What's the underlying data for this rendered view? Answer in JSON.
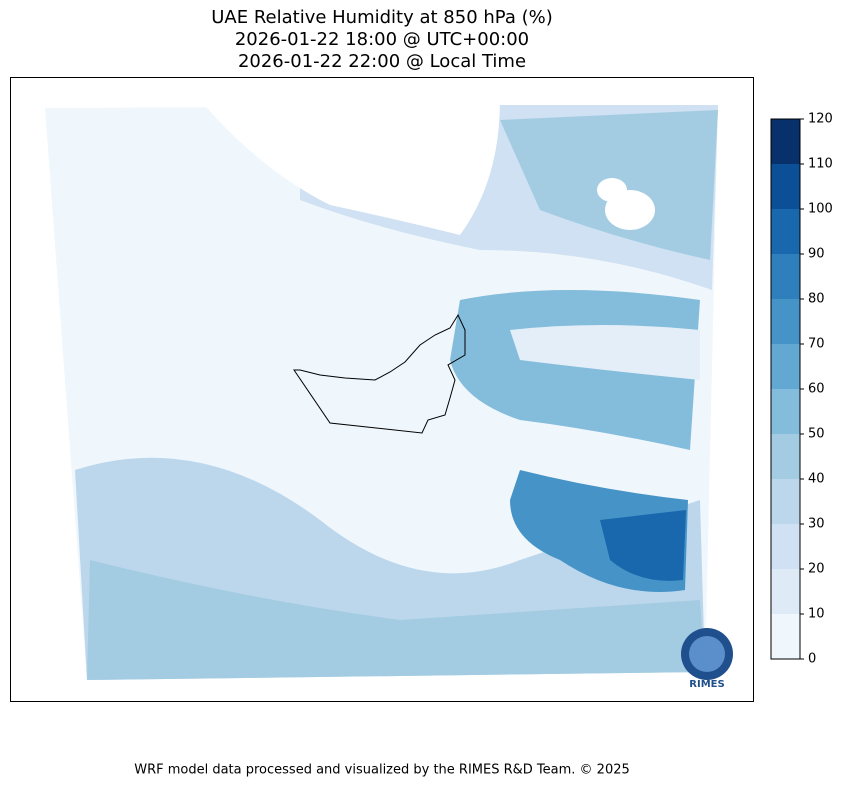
{
  "map": {
    "title": [
      "UAE Relative Humidity at 850 hPa (%)",
      "2026-01-22 18:00 @ UTC+00:00",
      "2026-01-22 22:00 @ Local Time"
    ],
    "colorbar": {
      "levels": [
        0,
        10,
        20,
        30,
        40,
        50,
        60,
        70,
        80,
        90,
        100,
        110,
        120
      ],
      "colors": [
        "#eff6fc",
        "#deebf7",
        "#cfe1f2",
        "#bcd7eb",
        "#a3cce3",
        "#84bcdb",
        "#63a8d3",
        "#4694c7",
        "#2f7fbc",
        "#1967ad",
        "#0b5097",
        "#08306b"
      ]
    },
    "logo_text": "RIMES",
    "footer": "WRF model data processed and visualized by the RIMES R&D Team. © 2025"
  }
}
